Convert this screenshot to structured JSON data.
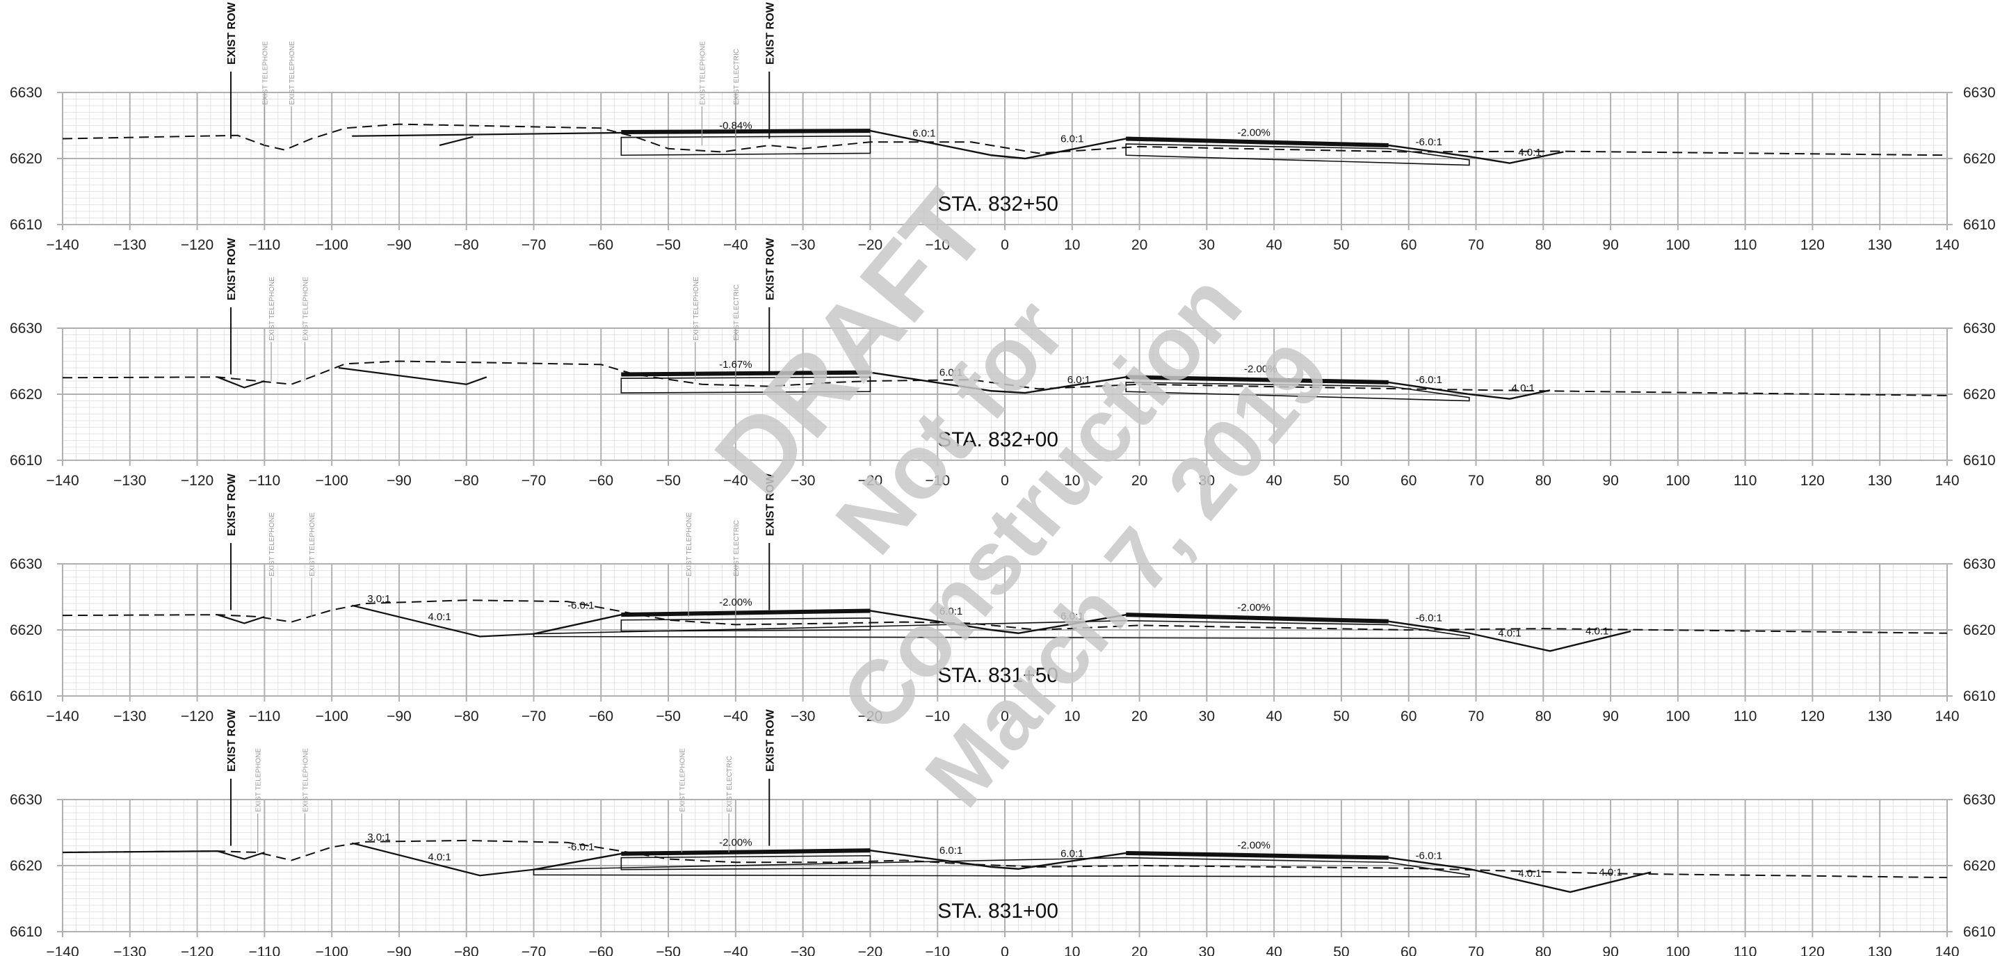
{
  "x_ticks": [
    -140,
    -130,
    -120,
    -110,
    -100,
    -90,
    -80,
    -70,
    -60,
    -50,
    -40,
    -30,
    -20,
    -10,
    0,
    10,
    20,
    30,
    40,
    50,
    60,
    70,
    80,
    90,
    100,
    110,
    120,
    130,
    140
  ],
  "y_ticks": [
    6610,
    6620,
    6630
  ],
  "row_label": "EXIST ROW",
  "utility_labels": {
    "telephone": "EXIST TELEPHONE",
    "electric": "EXIST ELECTRIC"
  },
  "watermark": {
    "lines": [
      "DRAFT",
      "Not for",
      "Construction",
      "March 7, 2019"
    ],
    "color": "#c8c8c8"
  },
  "colors": {
    "line": "#111111",
    "grid_major": "#b0b0b0",
    "grid_minor": "#dddddd",
    "utility": "#999999"
  },
  "sections": [
    {
      "station": "STA. 832+50",
      "row_x": [
        -115,
        -35
      ],
      "utility_x": [
        -110,
        -106,
        -45,
        -40
      ],
      "existing_ground": [
        [
          -140,
          6623
        ],
        [
          -114,
          6623.5
        ],
        [
          -110,
          6622
        ],
        [
          -107,
          6621.3
        ],
        [
          -103,
          6623
        ],
        [
          -98,
          6624.6
        ],
        [
          -90,
          6625.2
        ],
        [
          -60,
          6624.6
        ],
        [
          -55,
          6623.3
        ],
        [
          -50,
          6621.5
        ],
        [
          -42,
          6621
        ],
        [
          -35,
          6622
        ],
        [
          -30,
          6621.5
        ],
        [
          -20,
          6622.5
        ],
        [
          -5,
          6622.5
        ],
        [
          5,
          6620.8
        ],
        [
          20,
          6621.8
        ],
        [
          60,
          6621
        ],
        [
          82,
          6621.1
        ],
        [
          140,
          6620.5
        ]
      ],
      "proposed": [
        [
          -57,
          6624
        ],
        [
          -20,
          6624.2
        ],
        [
          -2,
          6620.5
        ],
        [
          3,
          6620
        ],
        [
          18,
          6623
        ],
        [
          57,
          6622
        ],
        [
          69,
          6620.3
        ],
        [
          75,
          6619.3
        ],
        [
          83,
          6621
        ]
      ],
      "tie_lines": [
        [
          [
            -97,
            6623.4
          ],
          [
            -57,
            6623.9
          ]
        ],
        [
          [
            -84,
            6622
          ],
          [
            -79,
            6623.3
          ]
        ]
      ],
      "box": [
        [
          -57,
          6623.2
        ],
        [
          -20,
          6623.4
        ],
        [
          -20,
          6620.8
        ],
        [
          -57,
          6620.5
        ]
      ],
      "box2": [
        [
          18,
          6622.2
        ],
        [
          57,
          6621.5
        ],
        [
          69,
          6619.8
        ],
        [
          69,
          6619
        ],
        [
          18,
          6620.5
        ]
      ],
      "labels": [
        {
          "text": "-0.84%",
          "x": -40,
          "y": 6624.5
        },
        {
          "text": "6.0:1",
          "x": -12,
          "y": 6623.3
        },
        {
          "text": "6.0:1",
          "x": 10,
          "y": 6622.5
        },
        {
          "text": "-2.00%",
          "x": 37,
          "y": 6623.4
        },
        {
          "text": "-6.0:1",
          "x": 63,
          "y": 6622
        },
        {
          "text": "4.0:1",
          "x": 78,
          "y": 6620.4
        }
      ]
    },
    {
      "station": "STA. 832+00",
      "row_x": [
        -115,
        -35
      ],
      "utility_x": [
        -109,
        -104,
        -46,
        -40
      ],
      "existing_ground": [
        [
          -140,
          6622.5
        ],
        [
          -117,
          6622.6
        ],
        [
          -111,
          6622
        ],
        [
          -106,
          6621.5
        ],
        [
          -102,
          6623
        ],
        [
          -98,
          6624.6
        ],
        [
          -90,
          6625
        ],
        [
          -60,
          6624.5
        ],
        [
          -55,
          6623
        ],
        [
          -45,
          6621.5
        ],
        [
          -35,
          6621.2
        ],
        [
          -25,
          6621.8
        ],
        [
          -20,
          6622
        ],
        [
          -5,
          6622.2
        ],
        [
          5,
          6620.8
        ],
        [
          20,
          6621.5
        ],
        [
          60,
          6620.8
        ],
        [
          80,
          6620.5
        ],
        [
          140,
          6619.8
        ]
      ],
      "proposed": [
        [
          -57,
          6623
        ],
        [
          -20,
          6623.3
        ],
        [
          -2,
          6620.5
        ],
        [
          3,
          6620.2
        ],
        [
          18,
          6622.6
        ],
        [
          57,
          6621.8
        ],
        [
          69,
          6620
        ],
        [
          75,
          6619.3
        ],
        [
          81,
          6620.6
        ]
      ],
      "tie_lines": [
        [
          [
            -117,
            6622.6
          ],
          [
            -113,
            6621
          ],
          [
            -110,
            6622
          ]
        ],
        [
          [
            -99,
            6624
          ],
          [
            -80,
            6621.5
          ],
          [
            -77,
            6622.6
          ]
        ]
      ],
      "box": [
        [
          -57,
          6622.4
        ],
        [
          -20,
          6622.6
        ],
        [
          -20,
          6620.4
        ],
        [
          -57,
          6620.2
        ]
      ],
      "box2": [
        [
          18,
          6621.8
        ],
        [
          57,
          6621.2
        ],
        [
          69,
          6619.5
        ],
        [
          69,
          6619
        ],
        [
          18,
          6620.4
        ]
      ],
      "labels": [
        {
          "text": "-1.67%",
          "x": -40,
          "y": 6624
        },
        {
          "text": "6.0:1",
          "x": -8,
          "y": 6622.8
        },
        {
          "text": "6.0:1",
          "x": 11,
          "y": 6621.7
        },
        {
          "text": "-2.00%",
          "x": 38,
          "y": 6623.3
        },
        {
          "text": "-6.0:1",
          "x": 63,
          "y": 6621.7
        },
        {
          "text": "4.0:1",
          "x": 77,
          "y": 6620.4
        }
      ]
    },
    {
      "station": "STA. 831+50",
      "row_x": [
        -115,
        -35
      ],
      "utility_x": [
        -109,
        -103,
        -47,
        -40
      ],
      "existing_ground": [
        [
          -140,
          6622.2
        ],
        [
          -117,
          6622.3
        ],
        [
          -111,
          6622
        ],
        [
          -106,
          6621.2
        ],
        [
          -100,
          6623
        ],
        [
          -95,
          6624
        ],
        [
          -80,
          6624.5
        ],
        [
          -65,
          6624.3
        ],
        [
          -57,
          6622.8
        ],
        [
          -50,
          6621.5
        ],
        [
          -40,
          6620.8
        ],
        [
          -25,
          6621
        ],
        [
          -15,
          6621.2
        ],
        [
          -5,
          6621
        ],
        [
          5,
          6620
        ],
        [
          20,
          6620.7
        ],
        [
          60,
          6620
        ],
        [
          80,
          6620.2
        ],
        [
          140,
          6619.5
        ]
      ],
      "proposed": [
        [
          -70,
          6619.4
        ],
        [
          -57,
          6622.3
        ],
        [
          -20,
          6622.9
        ],
        [
          -2,
          6620
        ],
        [
          2,
          6619.5
        ],
        [
          18,
          6622.3
        ],
        [
          57,
          6621.3
        ],
        [
          69,
          6619.5
        ],
        [
          81,
          6616.8
        ],
        [
          93,
          6619.8
        ]
      ],
      "tie_lines": [
        [
          [
            -117,
            6622.3
          ],
          [
            -113,
            6621
          ],
          [
            -110,
            6622
          ]
        ],
        [
          [
            -97,
            6623.7
          ],
          [
            -78,
            6619
          ],
          [
            -70,
            6619.4
          ]
        ]
      ],
      "box": [
        [
          -57,
          6621.5
        ],
        [
          -20,
          6621.8
        ],
        [
          -20,
          6620
        ],
        [
          -57,
          6619.8
        ]
      ],
      "box2": [
        [
          18,
          6621.4
        ],
        [
          57,
          6620.8
        ],
        [
          69,
          6619
        ],
        [
          69,
          6618.7
        ],
        [
          -70,
          6619
        ],
        [
          -70,
          6619.4
        ]
      ],
      "labels": [
        {
          "text": "3.0:1",
          "x": -93,
          "y": 6624.2
        },
        {
          "text": "4.0:1",
          "x": -84,
          "y": 6621.5
        },
        {
          "text": "-6.0:1",
          "x": -63,
          "y": 6623.2
        },
        {
          "text": "-2.00%",
          "x": -40,
          "y": 6623.7
        },
        {
          "text": "6.0:1",
          "x": -8,
          "y": 6622.3
        },
        {
          "text": "6.0:1",
          "x": 10,
          "y": 6621.6
        },
        {
          "text": "-2.00%",
          "x": 37,
          "y": 6622.9
        },
        {
          "text": "-6.0:1",
          "x": 63,
          "y": 6621.3
        },
        {
          "text": "4.0:1",
          "x": 75,
          "y": 6619
        },
        {
          "text": "4.0:1",
          "x": 88,
          "y": 6619.3
        }
      ]
    },
    {
      "station": "STA. 831+00",
      "row_x": [
        -115,
        -35
      ],
      "utility_x": [
        -111,
        -104,
        -48,
        -41
      ],
      "existing_ground": [
        [
          -140,
          6622
        ],
        [
          -117,
          6622.2
        ],
        [
          -111,
          6622
        ],
        [
          -106,
          6620.8
        ],
        [
          -100,
          6622.8
        ],
        [
          -95,
          6623.6
        ],
        [
          -80,
          6623.8
        ],
        [
          -65,
          6623.5
        ],
        [
          -57,
          6622.2
        ],
        [
          -50,
          6621
        ],
        [
          -40,
          6620.5
        ],
        [
          -25,
          6620.5
        ],
        [
          -15,
          6620.8
        ],
        [
          -5,
          6620.2
        ],
        [
          5,
          6619.8
        ],
        [
          20,
          6620
        ],
        [
          60,
          6619.6
        ],
        [
          90,
          6618.8
        ],
        [
          140,
          6618.2
        ]
      ],
      "proposed": [
        [
          -70,
          6619.4
        ],
        [
          -57,
          6621.8
        ],
        [
          -20,
          6622.3
        ],
        [
          -2,
          6619.8
        ],
        [
          2,
          6619.5
        ],
        [
          18,
          6621.9
        ],
        [
          57,
          6621.2
        ],
        [
          69,
          6619.5
        ],
        [
          84,
          6616
        ],
        [
          96,
          6619
        ]
      ],
      "tie_lines": [
        [
          [
            -140,
            6622
          ],
          [
            -117,
            6622.2
          ],
          [
            -113,
            6621
          ],
          [
            -110,
            6622
          ]
        ],
        [
          [
            -97,
            6623.4
          ],
          [
            -78,
            6618.5
          ],
          [
            -70,
            6619.4
          ]
        ]
      ],
      "box": [
        [
          -57,
          6621.2
        ],
        [
          -20,
          6621.5
        ],
        [
          -20,
          6619.6
        ],
        [
          -57,
          6619.4
        ]
      ],
      "box2": [
        [
          18,
          6621.2
        ],
        [
          57,
          6620.5
        ],
        [
          69,
          6618.6
        ],
        [
          69,
          6618.3
        ],
        [
          -70,
          6618.6
        ],
        [
          -70,
          6619.4
        ]
      ],
      "labels": [
        {
          "text": "3.0:1",
          "x": -93,
          "y": 6623.8
        },
        {
          "text": "4.0:1",
          "x": -84,
          "y": 6620.8
        },
        {
          "text": "-6.0:1",
          "x": -63,
          "y": 6622.3
        },
        {
          "text": "-2.00%",
          "x": -40,
          "y": 6623
        },
        {
          "text": "6.0:1",
          "x": -8,
          "y": 6621.8
        },
        {
          "text": "6.0:1",
          "x": 10,
          "y": 6621.3
        },
        {
          "text": "-2.00%",
          "x": 37,
          "y": 6622.6
        },
        {
          "text": "-6.0:1",
          "x": 63,
          "y": 6621
        },
        {
          "text": "4.0:1",
          "x": 78,
          "y": 6618.3
        },
        {
          "text": "4.0:1",
          "x": 90,
          "y": 6618.5
        }
      ]
    }
  ]
}
